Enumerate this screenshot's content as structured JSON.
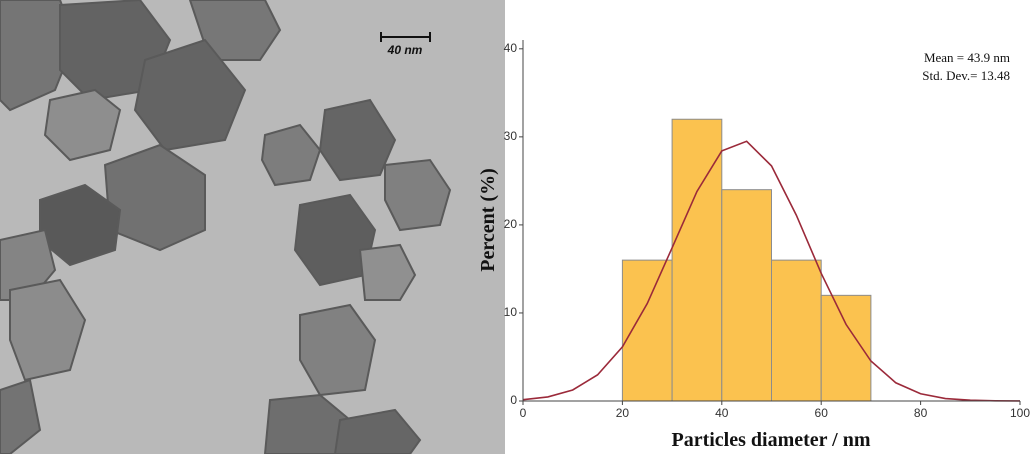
{
  "image": {
    "scale_bar_label": "40 nm"
  },
  "chart_data": {
    "type": "histogram",
    "bins": [
      20,
      30,
      40,
      50,
      60,
      70
    ],
    "values": [
      16,
      32,
      24,
      16,
      12
    ],
    "color": "#fbc24f",
    "curve": {
      "color": "#9b2a3a",
      "x": [
        0,
        5,
        10,
        15,
        20,
        25,
        30,
        35,
        40,
        45,
        50,
        55,
        60,
        65,
        70,
        75,
        80,
        85,
        90,
        95,
        100
      ],
      "y": [
        0.15,
        0.46,
        1.25,
        2.97,
        6.15,
        11.07,
        17.4,
        23.8,
        28.4,
        29.5,
        26.7,
        21.1,
        14.5,
        8.7,
        4.54,
        2.07,
        0.82,
        0.28,
        0.09,
        0.02,
        0.01
      ]
    },
    "annotations": [
      "Mean = 43.9 nm",
      "Std. Dev.= 13.48"
    ],
    "xlabel": "Particles diameter / nm",
    "ylabel": "Percent (%)",
    "xlim": [
      0,
      100
    ],
    "xticks": [
      0,
      20,
      40,
      60,
      80,
      100
    ],
    "ylim": [
      0,
      41
    ],
    "yticks": [
      0,
      10,
      20,
      30,
      40
    ]
  }
}
